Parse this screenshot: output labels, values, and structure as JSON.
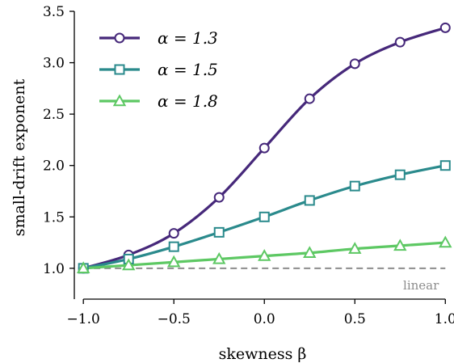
{
  "chart_data": {
    "type": "line",
    "xlabel": "skewness β",
    "ylabel": "small-drift exponent",
    "xlim": [
      -1.05,
      1.03
    ],
    "ylim": [
      0.7,
      3.5
    ],
    "xticks": [
      -1.0,
      -0.5,
      0.0,
      0.5,
      1.0
    ],
    "xtick_labels": [
      "−1.0",
      "−0.5",
      "0.0",
      "0.5",
      "1.0"
    ],
    "yticks": [
      1.0,
      1.5,
      2.0,
      2.5,
      3.0,
      3.5
    ],
    "ytick_labels": [
      "1.0",
      "1.5",
      "2.0",
      "2.5",
      "3.0",
      "3.5"
    ],
    "grid": false,
    "legend_position": "top-left",
    "x": [
      -1.0,
      -0.75,
      -0.5,
      -0.25,
      0.0,
      0.25,
      0.5,
      0.75,
      1.0
    ],
    "series": [
      {
        "name": "α = 1.3",
        "color": "#46287a",
        "marker": "circle",
        "values": [
          1.0,
          1.13,
          1.34,
          1.69,
          2.17,
          2.65,
          2.99,
          3.2,
          3.34
        ]
      },
      {
        "name": "α = 1.5",
        "color": "#2a8a8c",
        "marker": "square",
        "values": [
          1.0,
          1.09,
          1.21,
          1.35,
          1.5,
          1.66,
          1.8,
          1.91,
          2.0
        ]
      },
      {
        "name": "α = 1.8",
        "color": "#5dc863",
        "marker": "triangle",
        "values": [
          1.0,
          1.03,
          1.06,
          1.09,
          1.12,
          1.15,
          1.19,
          1.22,
          1.25
        ]
      }
    ],
    "reference_line": {
      "y": 1.0,
      "label": "linear",
      "color": "#8c8c8c",
      "style": "dashed"
    }
  }
}
